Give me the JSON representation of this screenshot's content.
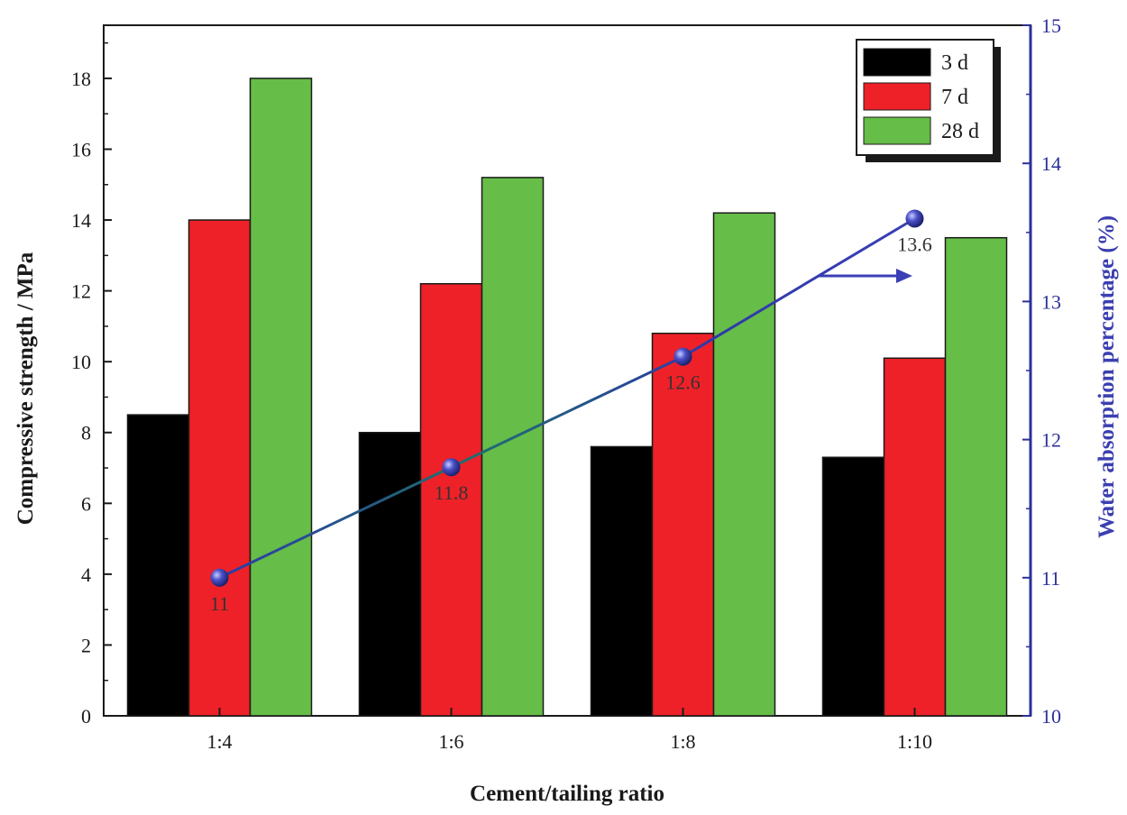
{
  "chart_data": {
    "type": "bar",
    "xlabel": "Cement/tailing ratio",
    "ylabel": "Compressive strength / MPa",
    "y2label": "Water absorption percentage (%)",
    "categories": [
      "1:4",
      "1:6",
      "1:8",
      "1:10"
    ],
    "ylim": [
      0,
      19.5
    ],
    "y2lim": [
      10,
      15
    ],
    "yticks": [
      "0",
      "2",
      "4",
      "6",
      "8",
      "10",
      "12",
      "14",
      "16",
      "18"
    ],
    "y2ticks": [
      "10",
      "11",
      "12",
      "13",
      "14",
      "15"
    ],
    "grid": false,
    "legend_position": "top-right",
    "series": [
      {
        "name": "3 d",
        "color": "#000000",
        "values": [
          8.5,
          8.0,
          7.6,
          7.3
        ]
      },
      {
        "name": "7 d",
        "color": "#ee2128",
        "values": [
          14.0,
          12.2,
          10.8,
          10.1
        ]
      },
      {
        "name": "28 d",
        "color": "#66bd48",
        "values": [
          18.0,
          15.2,
          14.2,
          13.5
        ]
      }
    ],
    "line_series": {
      "axis": "right",
      "color": "#3a3fb5",
      "values": [
        11,
        11.8,
        12.6,
        13.6
      ],
      "labels": [
        "11",
        "11.8",
        "12.6",
        "13.6"
      ]
    }
  }
}
